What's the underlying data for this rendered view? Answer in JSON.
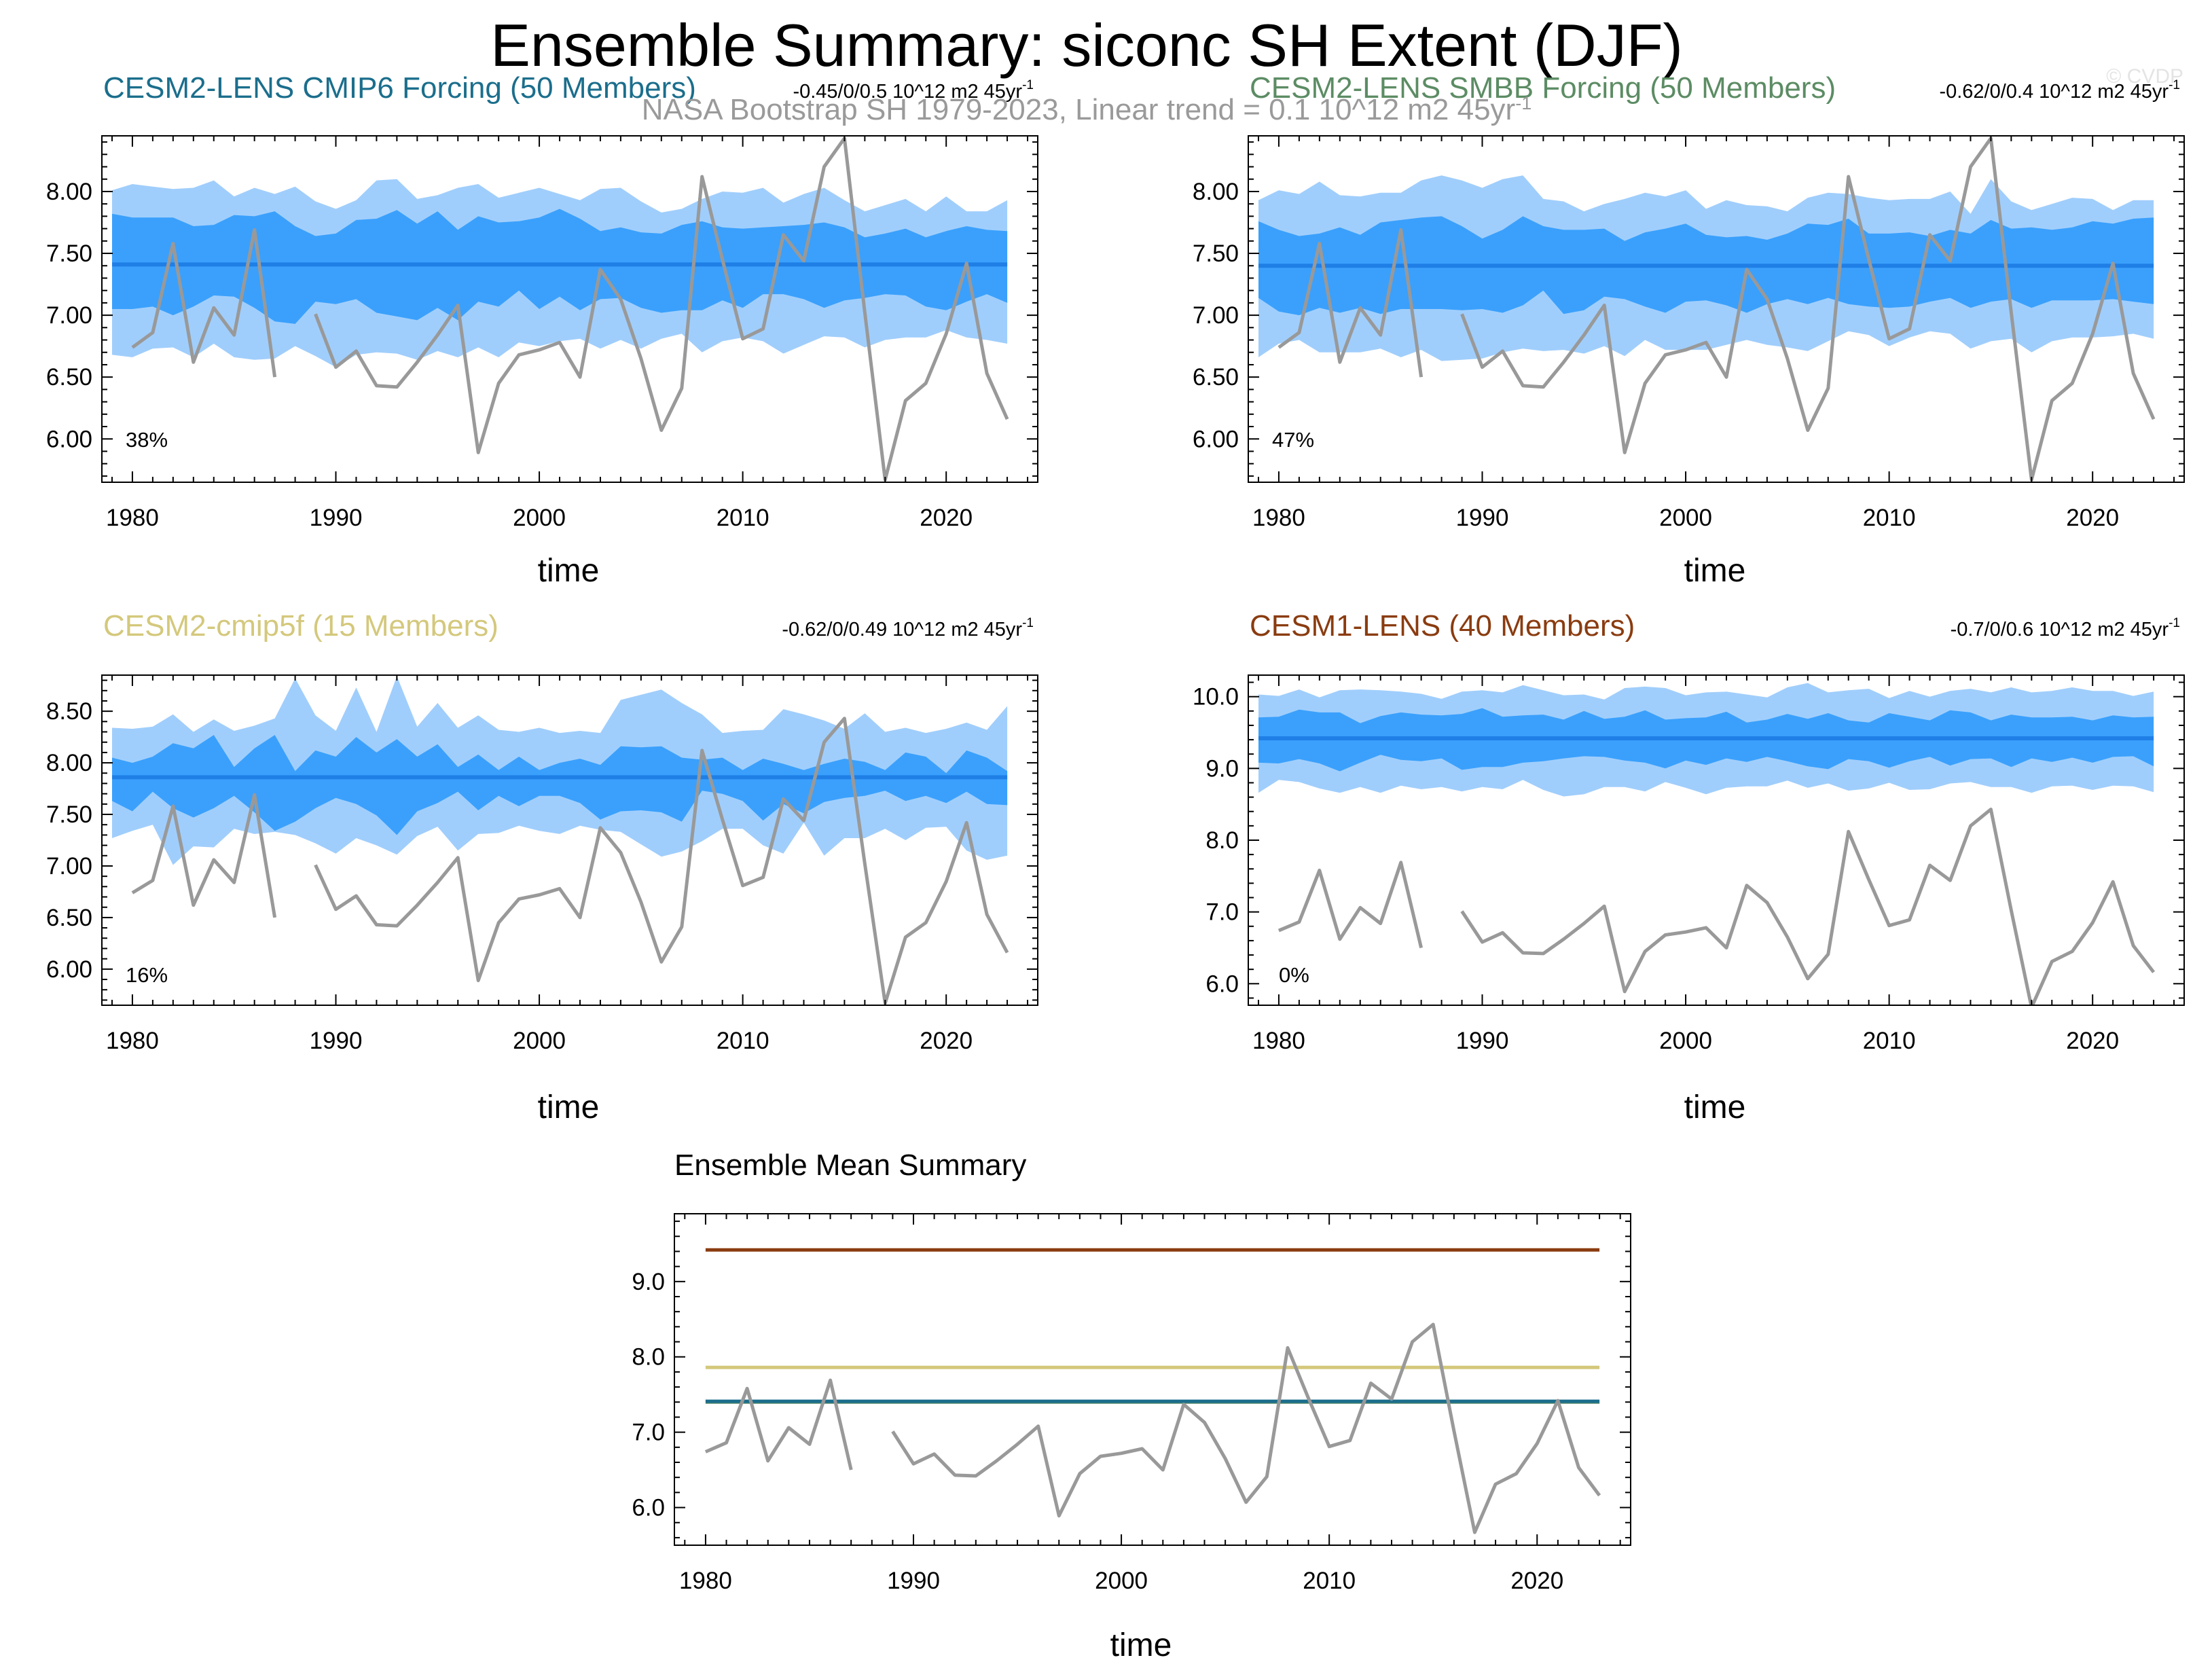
{
  "page": {
    "title": "Ensemble Summary: siconc SH Extent (DJF)",
    "observation_label": "NASA Bootstrap SH 1979-2023, Linear trend = 0.1 10^12 m2 45yr",
    "observation_label_sup": "-1",
    "copyright": "© CVDP"
  },
  "colors": {
    "band_outer": "#a0cefc",
    "band_inner": "#3aa0fc",
    "mean_line": "#1f7fe6",
    "obs_line": "#999999",
    "title_cmip6": "#1b6e8c",
    "title_smbb": "#5c8c64",
    "title_cmip5f": "#d4c87c",
    "title_cesm1": "#8a3c10",
    "sum_cesm1": "#8a3c10",
    "sum_cmip5f": "#d4c87c",
    "sum_smbb": "#5c8c64",
    "sum_cmip6": "#1b6e8c"
  },
  "chart_data": [
    {
      "id": "cmip6",
      "type": "line",
      "title": "CESM2-LENS CMIP6 Forcing (50 Members)",
      "trend_text": "-0.45/0/0.5 10^12 m2 45yr",
      "trend_sup": "-1",
      "percent": "38%",
      "xlabel": "time",
      "xlim": [
        1978.5,
        2024.5
      ],
      "ylim": [
        5.65,
        8.45
      ],
      "yticks": [
        6.0,
        6.5,
        7.0,
        7.5,
        8.0
      ],
      "ytick_labels": [
        "6.00",
        "6.50",
        "7.00",
        "7.50",
        "8.00"
      ],
      "xticks": [
        1980,
        1990,
        2000,
        2010,
        2020
      ],
      "ensemble_mean": 7.41,
      "outer_upper": [
        8.01,
        8.06,
        8.04,
        8.02,
        8.03,
        8.09,
        7.96,
        8.03,
        7.98,
        8.04,
        7.92,
        7.86,
        7.93,
        8.09,
        8.1,
        7.94,
        7.97,
        8.03,
        8.06,
        7.95,
        7.99,
        8.03,
        7.98,
        7.93,
        8.02,
        8.03,
        7.92,
        7.83,
        7.86,
        7.94,
        8.0,
        7.99,
        8.03,
        7.91,
        7.98,
        8.03,
        7.93,
        7.84,
        7.89,
        7.94,
        7.84,
        7.96,
        7.84,
        7.84,
        7.93
      ],
      "inner_upper": [
        7.82,
        7.79,
        7.79,
        7.79,
        7.72,
        7.73,
        7.81,
        7.8,
        7.84,
        7.72,
        7.64,
        7.66,
        7.77,
        7.78,
        7.85,
        7.74,
        7.84,
        7.69,
        7.8,
        7.75,
        7.76,
        7.79,
        7.86,
        7.78,
        7.68,
        7.71,
        7.67,
        7.66,
        7.73,
        7.76,
        7.71,
        7.7,
        7.71,
        7.72,
        7.73,
        7.75,
        7.71,
        7.63,
        7.66,
        7.7,
        7.63,
        7.68,
        7.72,
        7.69,
        7.68
      ],
      "inner_lower": [
        7.05,
        7.05,
        7.07,
        7.0,
        7.07,
        7.16,
        7.15,
        7.06,
        6.95,
        6.93,
        7.11,
        7.09,
        7.13,
        7.02,
        6.99,
        6.96,
        7.06,
        6.96,
        7.11,
        7.07,
        7.2,
        7.05,
        7.15,
        7.04,
        7.13,
        7.14,
        7.06,
        7.02,
        7.04,
        7.04,
        7.12,
        7.06,
        7.17,
        7.17,
        7.13,
        7.06,
        7.12,
        7.14,
        7.17,
        7.16,
        7.07,
        7.04,
        7.11,
        7.17,
        7.1
      ],
      "outer_lower": [
        6.68,
        6.66,
        6.73,
        6.74,
        6.66,
        6.77,
        6.66,
        6.64,
        6.65,
        6.75,
        6.67,
        6.58,
        6.68,
        6.7,
        6.69,
        6.64,
        6.71,
        6.66,
        6.74,
        6.66,
        6.78,
        6.75,
        6.79,
        6.81,
        6.73,
        6.8,
        6.73,
        6.81,
        6.85,
        6.7,
        6.79,
        6.82,
        6.79,
        6.69,
        6.76,
        6.83,
        6.82,
        6.74,
        6.8,
        6.82,
        6.82,
        6.88,
        6.82,
        6.8,
        6.77
      ]
    },
    {
      "id": "smbb",
      "type": "line",
      "title": "CESM2-LENS SMBB Forcing (50 Members)",
      "trend_text": "-0.62/0/0.4 10^12 m2 45yr",
      "trend_sup": "-1",
      "percent": "47%",
      "xlabel": "time",
      "xlim": [
        1978.5,
        2024.5
      ],
      "ylim": [
        5.65,
        8.45
      ],
      "yticks": [
        6.0,
        6.5,
        7.0,
        7.5,
        8.0
      ],
      "ytick_labels": [
        "6.00",
        "6.50",
        "7.00",
        "7.50",
        "8.00"
      ],
      "xticks": [
        1980,
        1990,
        2000,
        2010,
        2020
      ],
      "ensemble_mean": 7.4,
      "outer_upper": [
        7.93,
        8.01,
        7.98,
        8.08,
        7.97,
        7.96,
        7.99,
        7.99,
        8.09,
        8.13,
        8.09,
        8.03,
        8.1,
        8.13,
        7.94,
        7.92,
        7.84,
        7.9,
        7.94,
        7.99,
        7.96,
        8.01,
        7.86,
        7.93,
        7.89,
        7.88,
        7.84,
        7.95,
        7.99,
        7.98,
        7.95,
        7.93,
        7.94,
        7.94,
        8.0,
        7.82,
        8.1,
        7.92,
        7.85,
        7.9,
        7.95,
        7.94,
        7.85,
        7.93,
        7.93
      ],
      "inner_upper": [
        7.76,
        7.69,
        7.64,
        7.66,
        7.71,
        7.65,
        7.75,
        7.77,
        7.79,
        7.8,
        7.72,
        7.62,
        7.69,
        7.8,
        7.72,
        7.69,
        7.69,
        7.7,
        7.6,
        7.67,
        7.7,
        7.74,
        7.65,
        7.63,
        7.64,
        7.61,
        7.66,
        7.74,
        7.73,
        7.78,
        7.66,
        7.66,
        7.67,
        7.64,
        7.69,
        7.66,
        7.77,
        7.7,
        7.71,
        7.69,
        7.71,
        7.76,
        7.74,
        7.78,
        7.79
      ],
      "inner_lower": [
        7.14,
        7.03,
        7.0,
        7.06,
        7.02,
        7.06,
        7.01,
        7.05,
        7.05,
        7.05,
        7.04,
        7.05,
        7.02,
        7.08,
        7.2,
        7.01,
        7.04,
        7.15,
        7.13,
        7.07,
        7.02,
        7.11,
        7.12,
        7.08,
        7.02,
        7.09,
        7.13,
        7.09,
        7.14,
        7.09,
        7.07,
        7.06,
        7.07,
        7.11,
        7.14,
        7.06,
        7.11,
        7.13,
        7.06,
        7.12,
        7.12,
        7.12,
        7.13,
        7.11,
        7.09
      ],
      "outer_lower": [
        6.66,
        6.77,
        6.8,
        6.7,
        6.7,
        6.7,
        6.73,
        6.66,
        6.72,
        6.63,
        6.64,
        6.65,
        6.7,
        6.73,
        6.71,
        6.72,
        6.69,
        6.75,
        6.67,
        6.8,
        6.72,
        6.72,
        6.72,
        6.76,
        6.8,
        6.76,
        6.74,
        6.71,
        6.79,
        6.87,
        6.84,
        6.75,
        6.82,
        6.87,
        6.85,
        6.73,
        6.79,
        6.81,
        6.7,
        6.79,
        6.82,
        6.82,
        6.83,
        6.85,
        6.81
      ]
    },
    {
      "id": "cmip5f",
      "type": "line",
      "title": "CESM2-cmip5f (15 Members)",
      "trend_text": "-0.62/0/0.49 10^12 m2 45yr",
      "trend_sup": "-1",
      "percent": "16%",
      "xlabel": "time",
      "xlim": [
        1978.5,
        2024.5
      ],
      "ylim": [
        5.65,
        8.85
      ],
      "yticks": [
        6.0,
        6.5,
        7.0,
        7.5,
        8.0,
        8.5
      ],
      "ytick_labels": [
        "6.00",
        "6.50",
        "7.00",
        "7.50",
        "8.00",
        "8.50"
      ],
      "xticks": [
        1980,
        1990,
        2000,
        2010,
        2020
      ],
      "ensemble_mean": 7.86,
      "outer_upper": [
        8.34,
        8.33,
        8.35,
        8.47,
        8.3,
        8.42,
        8.31,
        8.36,
        8.43,
        8.82,
        8.46,
        8.31,
        8.73,
        8.3,
        8.84,
        8.35,
        8.58,
        8.34,
        8.46,
        8.32,
        8.3,
        8.34,
        8.29,
        8.31,
        8.29,
        8.61,
        8.66,
        8.71,
        8.58,
        8.47,
        8.29,
        8.31,
        8.32,
        8.52,
        8.47,
        8.41,
        8.33,
        8.48,
        8.3,
        8.34,
        8.29,
        8.33,
        8.39,
        8.32,
        8.55
      ],
      "inner_upper": [
        8.05,
        8.0,
        8.06,
        8.19,
        8.14,
        8.27,
        7.96,
        8.14,
        8.27,
        7.92,
        8.12,
        8.06,
        8.25,
        8.1,
        8.23,
        8.06,
        8.18,
        7.96,
        8.08,
        7.93,
        8.06,
        7.93,
        8.0,
        8.04,
        7.98,
        8.16,
        8.15,
        8.16,
        8.05,
        8.03,
        8.05,
        7.93,
        8.04,
        7.99,
        7.93,
        7.99,
        8.04,
        8.01,
        7.93,
        8.1,
        8.06,
        7.9,
        8.12,
        8.05,
        7.92
      ],
      "inner_lower": [
        7.63,
        7.53,
        7.72,
        7.56,
        7.47,
        7.56,
        7.68,
        7.52,
        7.34,
        7.43,
        7.56,
        7.66,
        7.6,
        7.49,
        7.3,
        7.53,
        7.61,
        7.72,
        7.54,
        7.68,
        7.58,
        7.68,
        7.68,
        7.61,
        7.45,
        7.53,
        7.54,
        7.52,
        7.43,
        7.73,
        7.7,
        7.63,
        7.44,
        7.6,
        7.51,
        7.62,
        7.66,
        7.68,
        7.73,
        7.63,
        7.68,
        7.61,
        7.72,
        7.6,
        7.59
      ],
      "outer_lower": [
        7.27,
        7.34,
        7.4,
        7.01,
        7.19,
        7.18,
        7.36,
        7.31,
        7.33,
        7.3,
        7.22,
        7.12,
        7.27,
        7.2,
        7.11,
        7.29,
        7.38,
        7.15,
        7.31,
        7.32,
        7.39,
        7.34,
        7.31,
        7.39,
        7.35,
        7.33,
        7.21,
        7.09,
        7.14,
        7.24,
        7.36,
        7.36,
        7.2,
        7.12,
        7.42,
        7.1,
        7.27,
        7.27,
        7.36,
        7.25,
        7.37,
        7.38,
        7.15,
        7.06,
        7.1
      ]
    },
    {
      "id": "cesm1",
      "type": "line",
      "title": "CESM1-LENS (40 Members)",
      "trend_text": "-0.7/0/0.6 10^12 m2 45yr",
      "trend_sup": "-1",
      "percent": "0%",
      "xlabel": "time",
      "xlim": [
        1978.5,
        2024.5
      ],
      "ylim": [
        5.7,
        10.3
      ],
      "yticks": [
        6.0,
        7.0,
        8.0,
        9.0,
        10.0
      ],
      "ytick_labels": [
        "6.0",
        "7.0",
        "8.0",
        "9.0",
        "10.0"
      ],
      "xticks": [
        1980,
        1990,
        2000,
        2010,
        2020
      ],
      "ensemble_mean": 9.42,
      "outer_upper": [
        10.03,
        10.01,
        10.1,
        9.99,
        10.09,
        10.1,
        10.09,
        10.07,
        10.04,
        9.97,
        10.07,
        10.09,
        10.06,
        10.16,
        10.09,
        10.02,
        10.03,
        9.96,
        10.12,
        10.14,
        10.12,
        10.02,
        10.06,
        10.07,
        10.03,
        9.99,
        10.13,
        10.19,
        10.06,
        10.09,
        10.11,
        9.98,
        10.08,
        10.0,
        10.08,
        10.11,
        10.06,
        10.13,
        10.06,
        10.08,
        10.13,
        10.08,
        10.08,
        10.01,
        10.07
      ],
      "inner_upper": [
        9.71,
        9.72,
        9.82,
        9.78,
        9.78,
        9.63,
        9.73,
        9.78,
        9.75,
        9.74,
        9.76,
        9.84,
        9.72,
        9.74,
        9.75,
        9.68,
        9.8,
        9.69,
        9.72,
        9.81,
        9.68,
        9.7,
        9.71,
        9.79,
        9.64,
        9.68,
        9.76,
        9.69,
        9.77,
        9.67,
        9.64,
        9.77,
        9.72,
        9.67,
        9.81,
        9.78,
        9.67,
        9.75,
        9.71,
        9.71,
        9.72,
        9.67,
        9.74,
        9.71,
        9.72
      ],
      "inner_lower": [
        9.08,
        9.07,
        9.13,
        9.07,
        8.96,
        9.08,
        9.19,
        9.12,
        9.1,
        9.14,
        8.98,
        9.02,
        9.02,
        9.08,
        9.1,
        9.14,
        9.17,
        9.16,
        9.11,
        9.08,
        9.0,
        9.11,
        9.05,
        9.14,
        9.09,
        9.16,
        9.1,
        9.03,
        8.99,
        9.13,
        9.1,
        9.01,
        9.1,
        9.16,
        9.04,
        9.13,
        9.14,
        9.02,
        9.14,
        9.09,
        9.15,
        9.08,
        9.16,
        9.17,
        9.03
      ],
      "outer_lower": [
        8.66,
        8.84,
        8.81,
        8.72,
        8.66,
        8.74,
        8.66,
        8.76,
        8.71,
        8.74,
        8.68,
        8.74,
        8.71,
        8.84,
        8.7,
        8.61,
        8.64,
        8.74,
        8.74,
        8.68,
        8.81,
        8.73,
        8.64,
        8.73,
        8.75,
        8.75,
        8.83,
        8.73,
        8.79,
        8.69,
        8.72,
        8.8,
        8.7,
        8.71,
        8.79,
        8.81,
        8.74,
        8.74,
        8.66,
        8.75,
        8.76,
        8.7,
        8.76,
        8.75,
        8.67
      ]
    },
    {
      "id": "summary",
      "type": "line",
      "title": "Ensemble Mean Summary",
      "xlabel": "time",
      "xlim": [
        1978.5,
        2024.5
      ],
      "ylim": [
        5.5,
        9.9
      ],
      "yticks": [
        6.0,
        7.0,
        8.0,
        9.0
      ],
      "ytick_labels": [
        "6.0",
        "7.0",
        "8.0",
        "9.0"
      ],
      "xticks": [
        1980,
        1990,
        2000,
        2010,
        2020
      ],
      "series": [
        {
          "name": "CESM1-LENS",
          "value": 9.42,
          "color_key": "sum_cesm1"
        },
        {
          "name": "CESM2-cmip5f",
          "value": 7.86,
          "color_key": "sum_cmip5f"
        },
        {
          "name": "CESM2-LENS SMBB Forcing",
          "value": 7.4,
          "color_key": "sum_smbb"
        },
        {
          "name": "CESM2-LENS CMIP6 Forcing",
          "value": 7.41,
          "color_key": "sum_cmip6"
        }
      ]
    }
  ],
  "observations": {
    "name": "NASA Bootstrap SH",
    "years": [
      1980,
      1981,
      1982,
      1983,
      1984,
      1985,
      1986,
      1987,
      1988,
      1989,
      1990,
      1991,
      1992,
      1993,
      1994,
      1995,
      1996,
      1997,
      1998,
      1999,
      2000,
      2001,
      2002,
      2003,
      2004,
      2005,
      2006,
      2007,
      2008,
      2009,
      2010,
      2011,
      2012,
      2013,
      2014,
      2015,
      2016,
      2017,
      2018,
      2019,
      2020,
      2021,
      2022,
      2023
    ],
    "values": [
      6.74,
      6.86,
      7.58,
      6.62,
      7.06,
      6.84,
      7.69,
      6.5,
      null,
      7.01,
      6.58,
      6.71,
      6.43,
      6.42,
      6.62,
      6.84,
      7.08,
      5.89,
      6.45,
      6.68,
      6.72,
      6.78,
      6.5,
      7.37,
      7.13,
      6.65,
      6.07,
      6.41,
      8.12,
      7.45,
      6.81,
      6.89,
      7.65,
      7.44,
      8.2,
      8.43,
      7.02,
      5.67,
      6.31,
      6.45,
      6.85,
      7.42,
      6.53,
      6.16
    ]
  }
}
